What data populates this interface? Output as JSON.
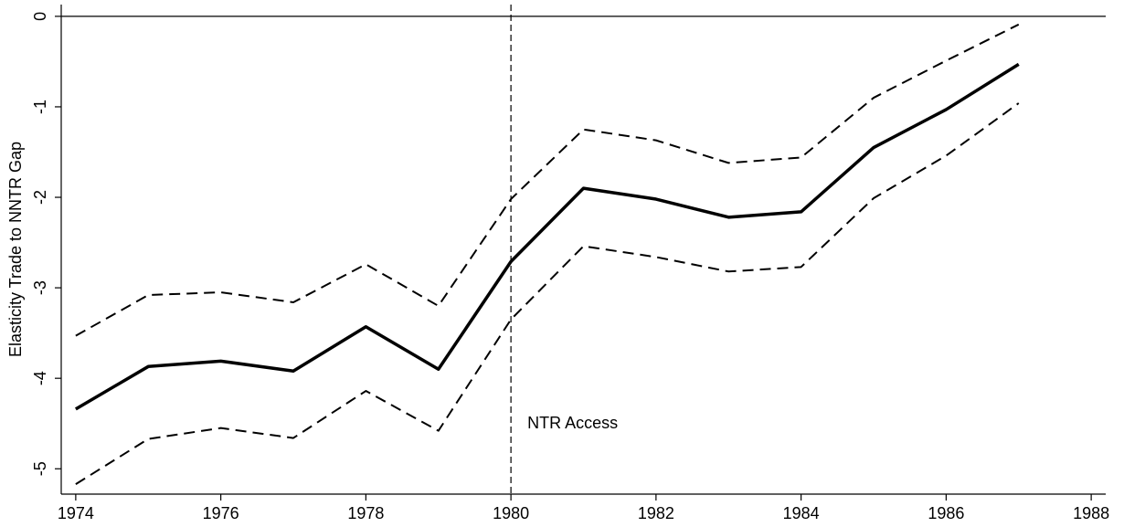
{
  "chart_data": {
    "type": "line",
    "y_label": "Elasticity Trade to NNTR Gap",
    "x": [
      1974,
      1975,
      1976,
      1977,
      1978,
      1979,
      1980,
      1981,
      1982,
      1983,
      1984,
      1985,
      1986,
      1987
    ],
    "series": [
      {
        "color": "#000000",
        "dash": false,
        "width": 3.5,
        "values": [
          -4.34,
          -3.87,
          -3.81,
          -3.92,
          -3.43,
          -3.9,
          -2.71,
          -1.9,
          -2.02,
          -2.22,
          -2.16,
          -1.45,
          -1.03,
          -0.53
        ]
      },
      {
        "color": "#000000",
        "dash": true,
        "width": 2,
        "values": [
          -3.53,
          -3.08,
          -3.05,
          -3.16,
          -2.74,
          -3.2,
          -2.02,
          -1.25,
          -1.37,
          -1.62,
          -1.56,
          -0.9,
          -0.49,
          -0.09
        ]
      },
      {
        "color": "#000000",
        "dash": true,
        "width": 2,
        "values": [
          -5.17,
          -4.67,
          -4.55,
          -4.66,
          -4.14,
          -4.58,
          -3.35,
          -2.54,
          -2.66,
          -2.82,
          -2.77,
          -2.01,
          -1.54,
          -0.96
        ]
      }
    ],
    "xlim": [
      1973.8,
      1988.2
    ],
    "xticks": [
      1974,
      1976,
      1978,
      1980,
      1982,
      1984,
      1986,
      1988
    ],
    "ylim": [
      -5.28,
      0.13
    ],
    "yticks": [
      0,
      -1,
      -2,
      -3,
      -4,
      -5
    ],
    "hline": 0,
    "vline": 1980,
    "annotation": "NTR Access"
  }
}
